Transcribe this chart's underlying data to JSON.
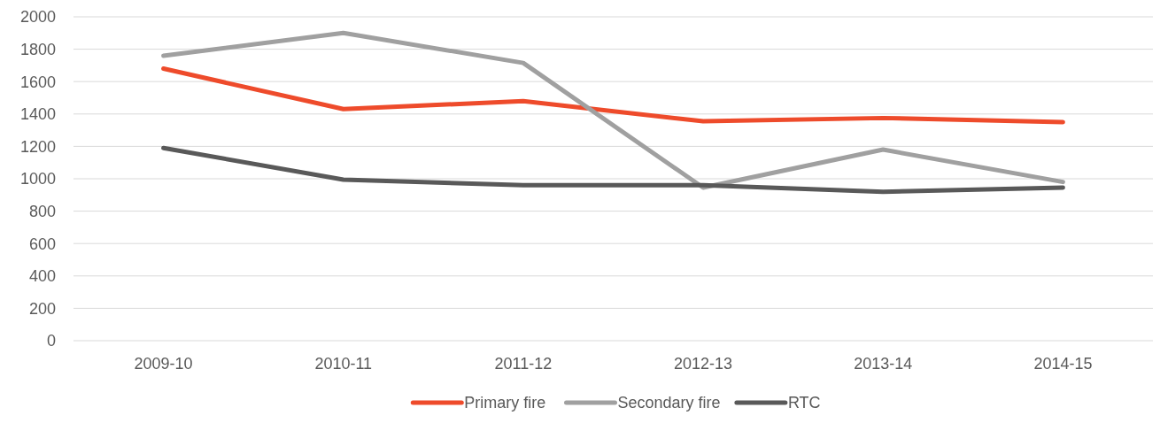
{
  "chart_data": {
    "type": "line",
    "categories": [
      "2009-10",
      "2010-11",
      "2011-12",
      "2012-13",
      "2013-14",
      "2014-15"
    ],
    "series": [
      {
        "name": "Primary fire",
        "color": "#ee4b2b",
        "values": [
          1680,
          1430,
          1480,
          1355,
          1375,
          1350
        ]
      },
      {
        "name": "Secondary fire",
        "color": "#a0a0a0",
        "values": [
          1760,
          1900,
          1715,
          945,
          1180,
          980
        ]
      },
      {
        "name": "RTC",
        "color": "#595959",
        "values": [
          1190,
          995,
          960,
          960,
          920,
          945
        ]
      }
    ],
    "ylim": [
      0,
      2000
    ],
    "yticks": [
      0,
      200,
      400,
      600,
      800,
      1000,
      1200,
      1400,
      1600,
      1800,
      2000
    ],
    "grid": "y",
    "legend": "bottom",
    "marker": "none",
    "line_style": "solid"
  }
}
